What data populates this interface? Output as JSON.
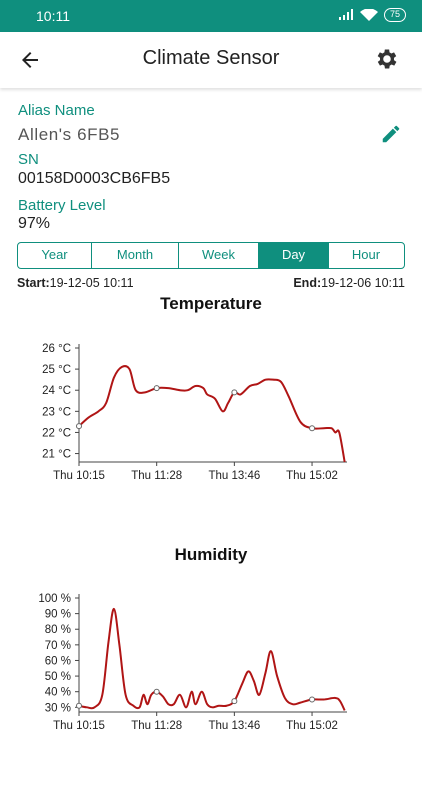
{
  "status": {
    "time": "10:11",
    "battery": "75"
  },
  "header": {
    "title": "Climate Sensor"
  },
  "info": {
    "alias_label": "Alias Name",
    "alias_value": "Allen's 6FB5",
    "sn_label": "SN",
    "sn_value": "00158D0003CB6FB5",
    "battery_label": "Battery Level",
    "battery_value": "97%"
  },
  "tabs": [
    {
      "label": "Year",
      "active": false
    },
    {
      "label": "Month",
      "active": false
    },
    {
      "label": "Week",
      "active": false
    },
    {
      "label": "Day",
      "active": true
    },
    {
      "label": "Hour",
      "active": false
    }
  ],
  "range": {
    "start_label": "Start:",
    "start_value": "19-12-05 10:11",
    "end_label": "End:",
    "end_value": "19-12-06 10:11"
  },
  "colors": {
    "accent": "#0f8f7e",
    "line": "#b01515"
  },
  "chart_data": [
    {
      "type": "line",
      "title": "Temperature",
      "y_tick_labels": [
        "26 °C",
        "25 °C",
        "24 °C",
        "23 °C",
        "22 °C",
        "21 °C"
      ],
      "y_ticks": [
        26,
        25,
        24,
        23,
        22,
        21
      ],
      "ylim": [
        20.6,
        26
      ],
      "x_tick_labels": [
        "Thu 10:15",
        "Thu 11:28",
        "Thu 13:46",
        "Thu 15:02"
      ],
      "x_ticks": [
        0,
        1,
        2,
        3
      ],
      "xlim": [
        0,
        3.45
      ],
      "series": [
        {
          "points": [
            [
              0,
              22.3
            ],
            [
              0.12,
              22.7
            ],
            [
              0.25,
              23.0
            ],
            [
              0.35,
              23.4
            ],
            [
              0.45,
              24.6
            ],
            [
              0.55,
              25.1
            ],
            [
              0.65,
              25.0
            ],
            [
              0.73,
              24.0
            ],
            [
              0.85,
              23.9
            ],
            [
              1.0,
              24.1
            ],
            [
              1.15,
              24.1
            ],
            [
              1.3,
              24.0
            ],
            [
              1.4,
              24.0
            ],
            [
              1.5,
              24.2
            ],
            [
              1.6,
              24.1
            ],
            [
              1.65,
              23.8
            ],
            [
              1.75,
              23.6
            ],
            [
              1.85,
              23.0
            ],
            [
              1.92,
              23.4
            ],
            [
              2.0,
              23.9
            ],
            [
              2.08,
              23.8
            ],
            [
              2.2,
              24.2
            ],
            [
              2.3,
              24.3
            ],
            [
              2.4,
              24.5
            ],
            [
              2.5,
              24.5
            ],
            [
              2.6,
              24.4
            ],
            [
              2.7,
              23.7
            ],
            [
              2.85,
              22.5
            ],
            [
              3.0,
              22.2
            ],
            [
              3.15,
              22.2
            ],
            [
              3.25,
              22.2
            ],
            [
              3.3,
              22.0
            ],
            [
              3.35,
              22.0
            ],
            [
              3.42,
              20.6
            ]
          ]
        }
      ],
      "markers": [
        [
          0,
          22.3
        ],
        [
          1.0,
          24.1
        ],
        [
          2.0,
          23.9
        ],
        [
          3.0,
          22.2
        ]
      ],
      "grid": false
    },
    {
      "type": "line",
      "title": "Humidity",
      "y_tick_labels": [
        "100 %",
        "90 %",
        "80 %",
        "70 %",
        "60 %",
        "50 %",
        "40 %",
        "30 %"
      ],
      "y_ticks": [
        100,
        90,
        80,
        70,
        60,
        50,
        40,
        30
      ],
      "ylim": [
        27,
        100
      ],
      "x_tick_labels": [
        "Thu 10:15",
        "Thu 11:28",
        "Thu 13:46",
        "Thu 15:02"
      ],
      "x_ticks": [
        0,
        1,
        2,
        3
      ],
      "xlim": [
        0,
        3.45
      ],
      "series": [
        {
          "points": [
            [
              0,
              31
            ],
            [
              0.1,
              30
            ],
            [
              0.2,
              30
            ],
            [
              0.3,
              38
            ],
            [
              0.38,
              72
            ],
            [
              0.45,
              93
            ],
            [
              0.52,
              70
            ],
            [
              0.6,
              38
            ],
            [
              0.7,
              31
            ],
            [
              0.78,
              30
            ],
            [
              0.83,
              38
            ],
            [
              0.88,
              32
            ],
            [
              0.93,
              38
            ],
            [
              1.0,
              40
            ],
            [
              1.08,
              37
            ],
            [
              1.15,
              32
            ],
            [
              1.22,
              32
            ],
            [
              1.3,
              38
            ],
            [
              1.38,
              30
            ],
            [
              1.45,
              40
            ],
            [
              1.5,
              32
            ],
            [
              1.58,
              40
            ],
            [
              1.65,
              32
            ],
            [
              1.72,
              30
            ],
            [
              1.8,
              31
            ],
            [
              1.9,
              31
            ],
            [
              2.0,
              34
            ],
            [
              2.1,
              45
            ],
            [
              2.18,
              53
            ],
            [
              2.25,
              47
            ],
            [
              2.32,
              38
            ],
            [
              2.4,
              52
            ],
            [
              2.47,
              66
            ],
            [
              2.55,
              50
            ],
            [
              2.65,
              36
            ],
            [
              2.75,
              32
            ],
            [
              2.85,
              33
            ],
            [
              3.0,
              35
            ],
            [
              3.15,
              35
            ],
            [
              3.3,
              36
            ],
            [
              3.36,
              34
            ],
            [
              3.42,
              28
            ]
          ]
        }
      ],
      "markers": [
        [
          0,
          31
        ],
        [
          1.0,
          40
        ],
        [
          2.0,
          34
        ],
        [
          3.0,
          35
        ]
      ],
      "grid": false
    }
  ]
}
